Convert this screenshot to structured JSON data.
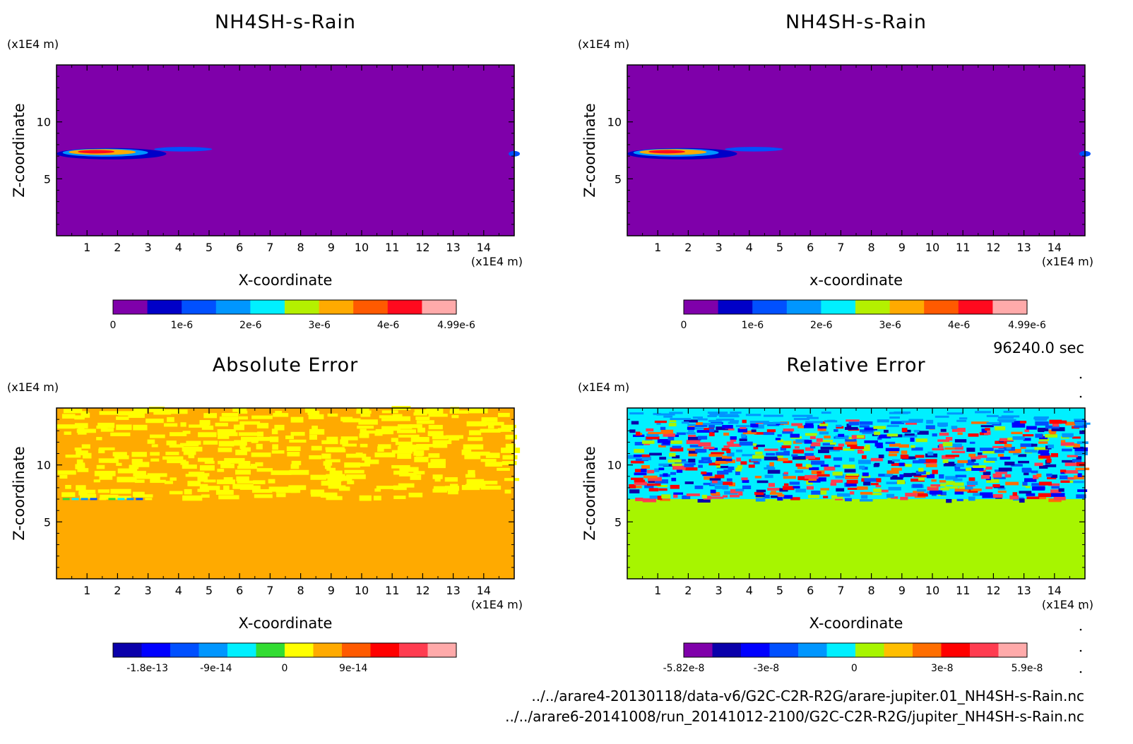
{
  "files": [
    "../../arare4-20130118/data-v6/G2C-C2R-R2G/arare-jupiter.01_NH4SH-s-Rain.nc",
    "../../arare6-20141008/run_20141012-2100/G2C-C2R-R2G/jupiter_NH4SH-s-Rain.nc"
  ],
  "time_label": "96240.0 sec",
  "colors": {
    "panel_background": [
      "#7f00aa",
      "#7f00aa",
      "#ffaa00",
      "#a7f500"
    ],
    "scale_1": [
      "#7f00aa",
      "#0000c8",
      "#0050ff",
      "#0096ff",
      "#00f0ff",
      "#b4f000",
      "#ffaa00",
      "#ff5a00",
      "#ff0a1e",
      "#ffaaaa"
    ],
    "scale_3": [
      "#0a00aa",
      "#0000ff",
      "#0050ff",
      "#0096ff",
      "#00f0ff",
      "#32dc32",
      "#ffff00",
      "#ffaa00",
      "#ff5a00",
      "#ff0000",
      "#ff3c50",
      "#ffaaaa"
    ],
    "scale_4": [
      "#7f00aa",
      "#0a00aa",
      "#0000ff",
      "#0050ff",
      "#0096ff",
      "#00f0ff",
      "#a7f500",
      "#ffbe00",
      "#ff6e00",
      "#ff0000",
      "#ff3c50",
      "#ffaaaa"
    ]
  },
  "chart_data": [
    {
      "type": "heatmap",
      "title": "NH4SH-s-Rain",
      "xlabel": "X-coordinate",
      "ylabel": "Z-coordinate",
      "x_unit": "(x1E4 m)",
      "y_unit": "(x1E4 m)",
      "xlim": [
        0,
        15
      ],
      "ylim": [
        0,
        15
      ],
      "x_ticks": [
        1,
        2,
        3,
        4,
        5,
        6,
        7,
        8,
        9,
        10,
        11,
        12,
        13,
        14
      ],
      "y_ticks": [
        5,
        10
      ],
      "colorbar_ticks": [
        "0",
        "1e-6",
        "2e-6",
        "3e-6",
        "4e-6",
        "4.99e-6"
      ],
      "colorbar_min": 0,
      "colorbar_max": 4.99e-06
    },
    {
      "type": "heatmap",
      "title": "NH4SH-s-Rain",
      "xlabel": "x-coordinate",
      "ylabel": "Z-coordinate",
      "x_unit": "(x1E4 m)",
      "y_unit": "(x1E4 m)",
      "xlim": [
        0,
        15
      ],
      "ylim": [
        0,
        15
      ],
      "x_ticks": [
        1,
        2,
        3,
        4,
        5,
        6,
        7,
        8,
        9,
        10,
        11,
        12,
        13,
        14
      ],
      "y_ticks": [
        5,
        10
      ],
      "colorbar_ticks": [
        "0",
        "1e-6",
        "2e-6",
        "3e-6",
        "4e-6",
        "4.99e-6"
      ],
      "colorbar_min": 0,
      "colorbar_max": 4.99e-06
    },
    {
      "type": "heatmap",
      "title": "Absolute Error",
      "xlabel": "X-coordinate",
      "ylabel": "Z-coordinate",
      "x_unit": "(x1E4 m)",
      "y_unit": "(x1E4 m)",
      "xlim": [
        0,
        15
      ],
      "ylim": [
        0,
        15
      ],
      "x_ticks": [
        1,
        2,
        3,
        4,
        5,
        6,
        7,
        8,
        9,
        10,
        11,
        12,
        13,
        14
      ],
      "y_ticks": [
        5,
        10
      ],
      "colorbar_ticks": [
        "-1.8e-13",
        "-9e-14",
        "0",
        "9e-14"
      ],
      "colorbar_min": -2.25e-13,
      "colorbar_max": 2.25e-13
    },
    {
      "type": "heatmap",
      "title": "Relative Error",
      "xlabel": "X-coordinate",
      "ylabel": "Z-coordinate",
      "x_unit": "(x1E4 m)",
      "y_unit": "(x1E4 m)",
      "xlim": [
        0,
        15
      ],
      "ylim": [
        0,
        15
      ],
      "x_ticks": [
        1,
        2,
        3,
        4,
        5,
        6,
        7,
        8,
        9,
        10,
        11,
        12,
        13,
        14
      ],
      "y_ticks": [
        5,
        10
      ],
      "colorbar_ticks": [
        "-5.82e-8",
        "-3e-8",
        "0",
        "3e-8",
        "5.9e-8"
      ],
      "colorbar_min": -5.82e-08,
      "colorbar_max": 5.9e-08
    }
  ]
}
